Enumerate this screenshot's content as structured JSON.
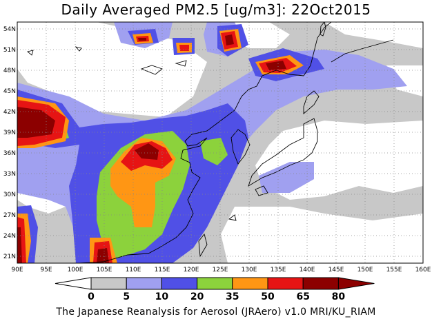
{
  "title": "Daily Averaged PM2.5 [ug/m3]: 22Oct2015",
  "credit": "The Japanese Reanalysis for Aerosol (JRAero) v1.0 MRI/KU_RIAM",
  "map": {
    "lon_range": [
      90,
      160
    ],
    "lat_range": [
      20,
      55
    ],
    "lon_ticks": [
      "90E",
      "95E",
      "100E",
      "105E",
      "110E",
      "115E",
      "120E",
      "125E",
      "130E",
      "135E",
      "140E",
      "145E",
      "150E",
      "155E",
      "160E"
    ],
    "lat_ticks": [
      "21N",
      "24N",
      "27N",
      "30N",
      "33N",
      "36N",
      "39N",
      "42N",
      "45N",
      "48N",
      "51N",
      "54N"
    ],
    "gridlines": "dotted",
    "variable": "PM2.5",
    "units": "ug/m3",
    "date": "22Oct2015"
  },
  "colorbar": {
    "labels": [
      "0",
      "5",
      "10",
      "20",
      "35",
      "50",
      "65",
      "80"
    ],
    "colors": [
      "#ffffff",
      "#c8c8c8",
      "#a0a0f0",
      "#5050e6",
      "#8cd23c",
      "#ff9614",
      "#e61414",
      "#8c0000"
    ]
  }
}
